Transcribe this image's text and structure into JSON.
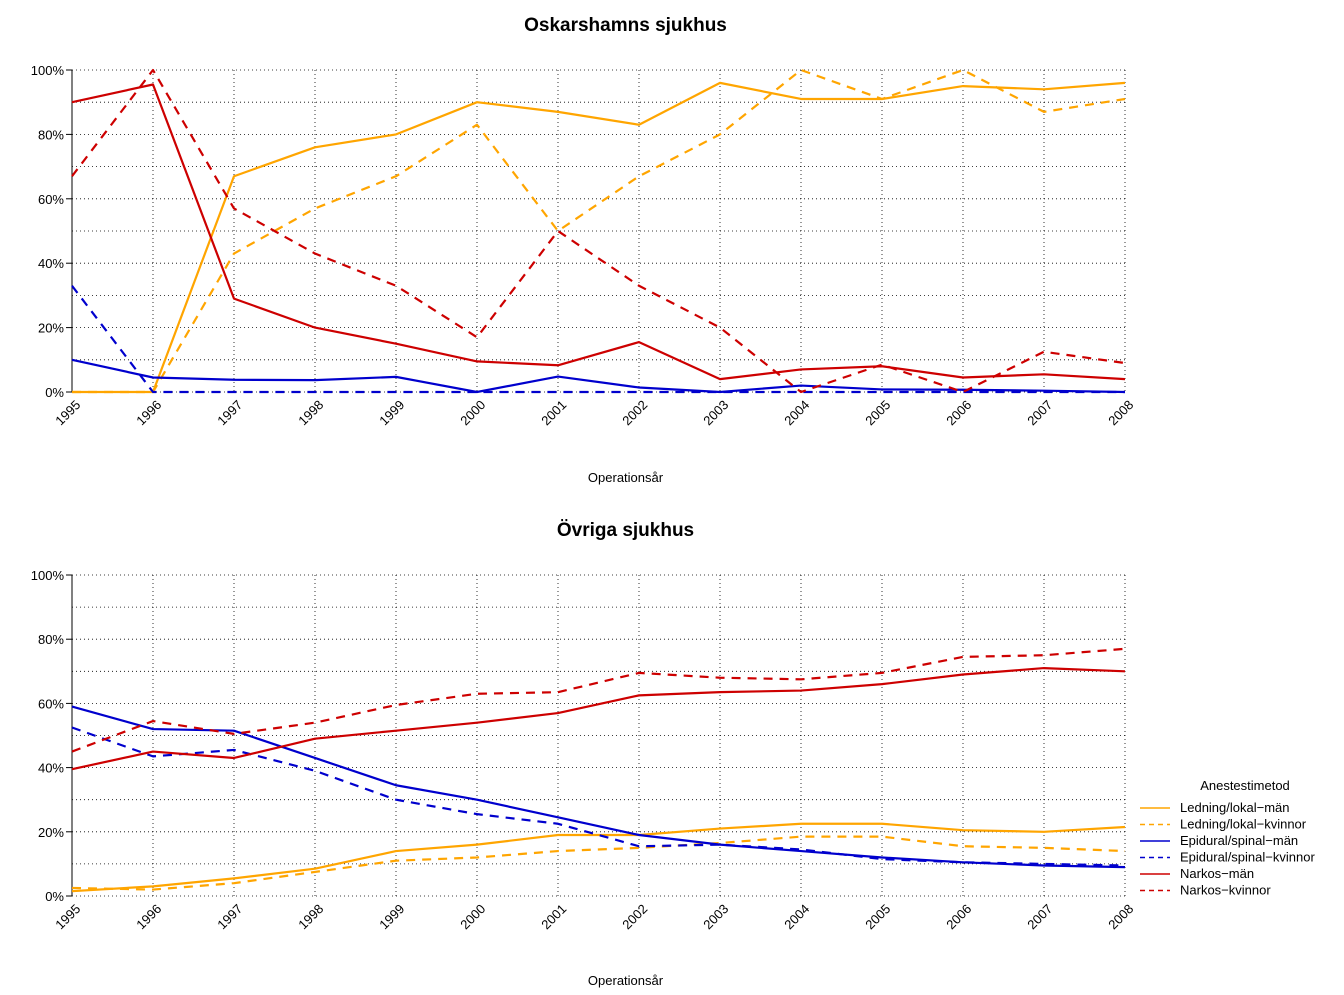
{
  "chart_data": [
    {
      "type": "line",
      "title": "Oskarshamns sjukhus",
      "xlabel": "Operationsår",
      "ylabel": "",
      "ylim": [
        0,
        1
      ],
      "yticks": [
        "0%",
        "20%",
        "40%",
        "60%",
        "80%",
        "100%"
      ],
      "x": [
        "1995",
        "1996",
        "1997",
        "1998",
        "1999",
        "2000",
        "2001",
        "2002",
        "2003",
        "2004",
        "2005",
        "2006",
        "2007",
        "2008"
      ],
      "grid": true,
      "series": [
        {
          "name": "Ledning/lokal−män",
          "color": "#FFA500",
          "dash": false,
          "values": [
            0.0,
            0.0,
            0.67,
            0.76,
            0.8,
            0.9,
            0.87,
            0.83,
            0.96,
            0.91,
            0.91,
            0.95,
            0.94,
            0.96
          ]
        },
        {
          "name": "Ledning/lokal−kvinnor",
          "color": "#FFA500",
          "dash": true,
          "values": [
            0.0,
            0.0,
            0.43,
            0.57,
            0.67,
            0.83,
            0.5,
            0.67,
            0.8,
            1.0,
            0.91,
            1.0,
            0.87,
            0.91
          ]
        },
        {
          "name": "Epidural/spinal−män",
          "color": "#0000CD",
          "dash": false,
          "values": [
            0.1,
            0.045,
            0.038,
            0.037,
            0.047,
            0.0,
            0.048,
            0.014,
            0.0,
            0.02,
            0.008,
            0.007,
            0.004,
            0.0
          ]
        },
        {
          "name": "Epidural/spinal−kvinnor",
          "color": "#0000CD",
          "dash": true,
          "values": [
            0.33,
            0.0,
            0.0,
            0.0,
            0.0,
            0.0,
            0.0,
            0.0,
            0.0,
            0.0,
            0.0,
            0.0,
            0.0,
            0.0
          ]
        },
        {
          "name": "Narkos−män",
          "color": "#CD0000",
          "dash": false,
          "values": [
            0.9,
            0.955,
            0.29,
            0.2,
            0.15,
            0.095,
            0.083,
            0.155,
            0.04,
            0.07,
            0.08,
            0.045,
            0.055,
            0.04
          ]
        },
        {
          "name": "Narkos−kvinnor",
          "color": "#CD0000",
          "dash": true,
          "values": [
            0.67,
            1.0,
            0.57,
            0.43,
            0.33,
            0.17,
            0.5,
            0.33,
            0.2,
            0.0,
            0.085,
            0.0,
            0.125,
            0.09
          ]
        }
      ]
    },
    {
      "type": "line",
      "title": "Övriga sjukhus",
      "xlabel": "Operationsår",
      "ylabel": "",
      "ylim": [
        0,
        1
      ],
      "yticks": [
        "0%",
        "20%",
        "40%",
        "60%",
        "80%",
        "100%"
      ],
      "x": [
        "1995",
        "1996",
        "1997",
        "1998",
        "1999",
        "2000",
        "2001",
        "2002",
        "2003",
        "2004",
        "2005",
        "2006",
        "2007",
        "2008"
      ],
      "grid": true,
      "series": [
        {
          "name": "Ledning/lokal−män",
          "color": "#FFA500",
          "dash": false,
          "values": [
            0.015,
            0.03,
            0.055,
            0.085,
            0.14,
            0.16,
            0.19,
            0.19,
            0.21,
            0.225,
            0.225,
            0.205,
            0.2,
            0.215
          ]
        },
        {
          "name": "Ledning/lokal−kvinnor",
          "color": "#FFA500",
          "dash": true,
          "values": [
            0.025,
            0.02,
            0.04,
            0.075,
            0.11,
            0.12,
            0.14,
            0.15,
            0.165,
            0.185,
            0.185,
            0.155,
            0.15,
            0.14
          ]
        },
        {
          "name": "Epidural/spinal−män",
          "color": "#0000CD",
          "dash": false,
          "values": [
            0.59,
            0.52,
            0.515,
            0.43,
            0.345,
            0.3,
            0.245,
            0.19,
            0.16,
            0.14,
            0.12,
            0.105,
            0.095,
            0.09
          ]
        },
        {
          "name": "Epidural/spinal−kvinnor",
          "color": "#0000CD",
          "dash": true,
          "values": [
            0.525,
            0.435,
            0.455,
            0.39,
            0.3,
            0.255,
            0.225,
            0.155,
            0.16,
            0.145,
            0.115,
            0.105,
            0.1,
            0.095
          ]
        },
        {
          "name": "Narkos−män",
          "color": "#CD0000",
          "dash": false,
          "values": [
            0.395,
            0.45,
            0.43,
            0.49,
            0.515,
            0.54,
            0.57,
            0.625,
            0.635,
            0.64,
            0.66,
            0.69,
            0.71,
            0.7
          ]
        },
        {
          "name": "Narkos−kvinnor",
          "color": "#CD0000",
          "dash": true,
          "values": [
            0.45,
            0.545,
            0.505,
            0.54,
            0.595,
            0.63,
            0.635,
            0.695,
            0.68,
            0.675,
            0.695,
            0.745,
            0.75,
            0.77
          ]
        }
      ]
    }
  ],
  "legend": {
    "title": "Anestestimetod",
    "position": "right",
    "items": [
      {
        "label": "Ledning/lokal−män",
        "color": "#FFA500",
        "dash": false
      },
      {
        "label": "Ledning/lokal−kvinnor",
        "color": "#FFA500",
        "dash": true
      },
      {
        "label": "Epidural/spinal−män",
        "color": "#0000CD",
        "dash": false
      },
      {
        "label": "Epidural/spinal−kvinnor",
        "color": "#0000CD",
        "dash": true
      },
      {
        "label": "Narkos−män",
        "color": "#CD0000",
        "dash": false
      },
      {
        "label": "Narkos−kvinnor",
        "color": "#CD0000",
        "dash": true
      }
    ]
  }
}
